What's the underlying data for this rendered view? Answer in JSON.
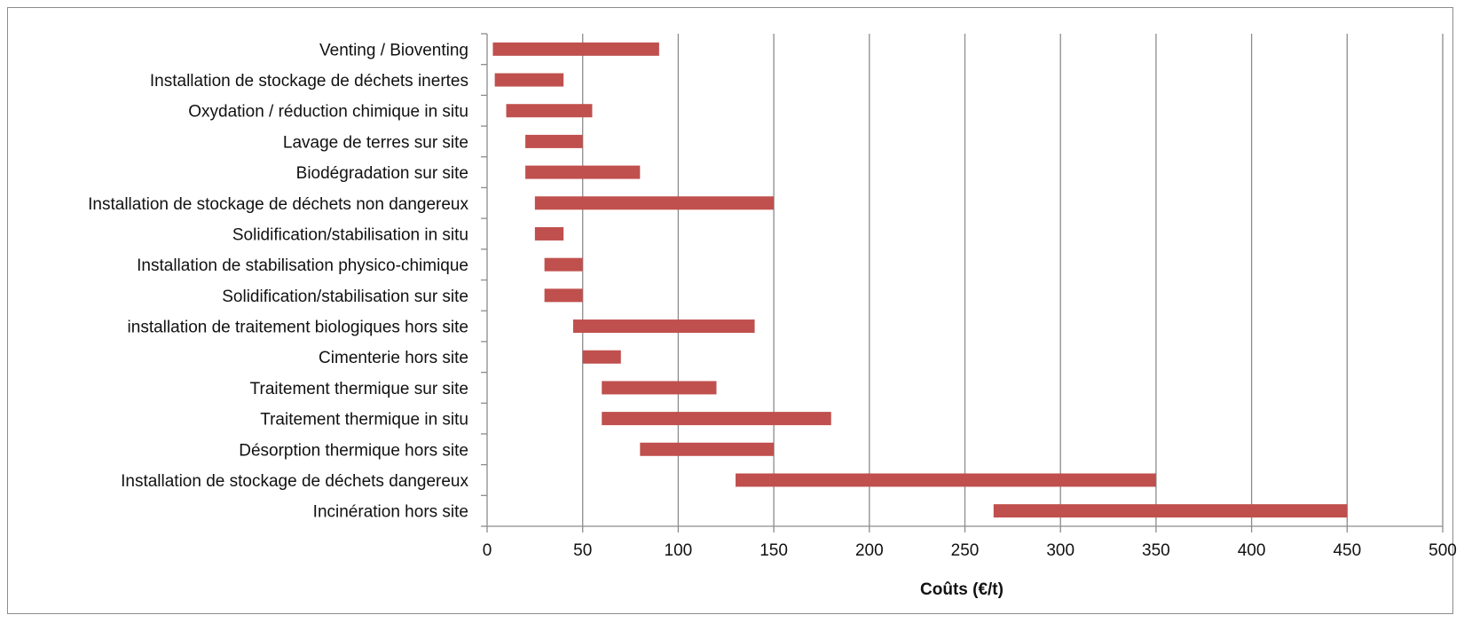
{
  "chart_data": {
    "type": "bar",
    "orientation": "horizontal",
    "style": "floating range bars",
    "categories": [
      "Venting / Bioventing",
      "Installation de stockage de déchets inertes",
      "Oxydation / réduction chimique in situ",
      "Lavage de terres sur site",
      "Biodégradation sur site",
      "Installation de stockage de déchets non dangereux",
      "Solidification/stabilisation in situ",
      "Installation de stabilisation physico-chimique",
      "Solidification/stabilisation sur site",
      "installation de traitement biologiques hors site",
      "Cimenterie hors site",
      "Traitement thermique sur site",
      "Traitement thermique in situ",
      "Désorption thermique hors site",
      "Installation de stockage de déchets dangereux",
      "Incinération hors site"
    ],
    "series": [
      {
        "ranges": [
          [
            3,
            90
          ],
          [
            4,
            40
          ],
          [
            10,
            55
          ],
          [
            20,
            50
          ],
          [
            20,
            80
          ],
          [
            25,
            150
          ],
          [
            25,
            40
          ],
          [
            30,
            50
          ],
          [
            30,
            50
          ],
          [
            45,
            140
          ],
          [
            50,
            70
          ],
          [
            60,
            120
          ],
          [
            60,
            180
          ],
          [
            80,
            150
          ],
          [
            130,
            350
          ],
          [
            265,
            450
          ]
        ]
      }
    ],
    "xlabel": "Coûts (€/t)",
    "ylabel": "",
    "xlim": [
      0,
      500
    ],
    "xticks": [
      "0",
      "50",
      "100",
      "150",
      "200",
      "250",
      "300",
      "350",
      "400",
      "450",
      "500"
    ],
    "grid": "vertical major gridlines",
    "legend": "none",
    "bar_color": "#c0504d",
    "grid_color": "#8c8c8c"
  }
}
